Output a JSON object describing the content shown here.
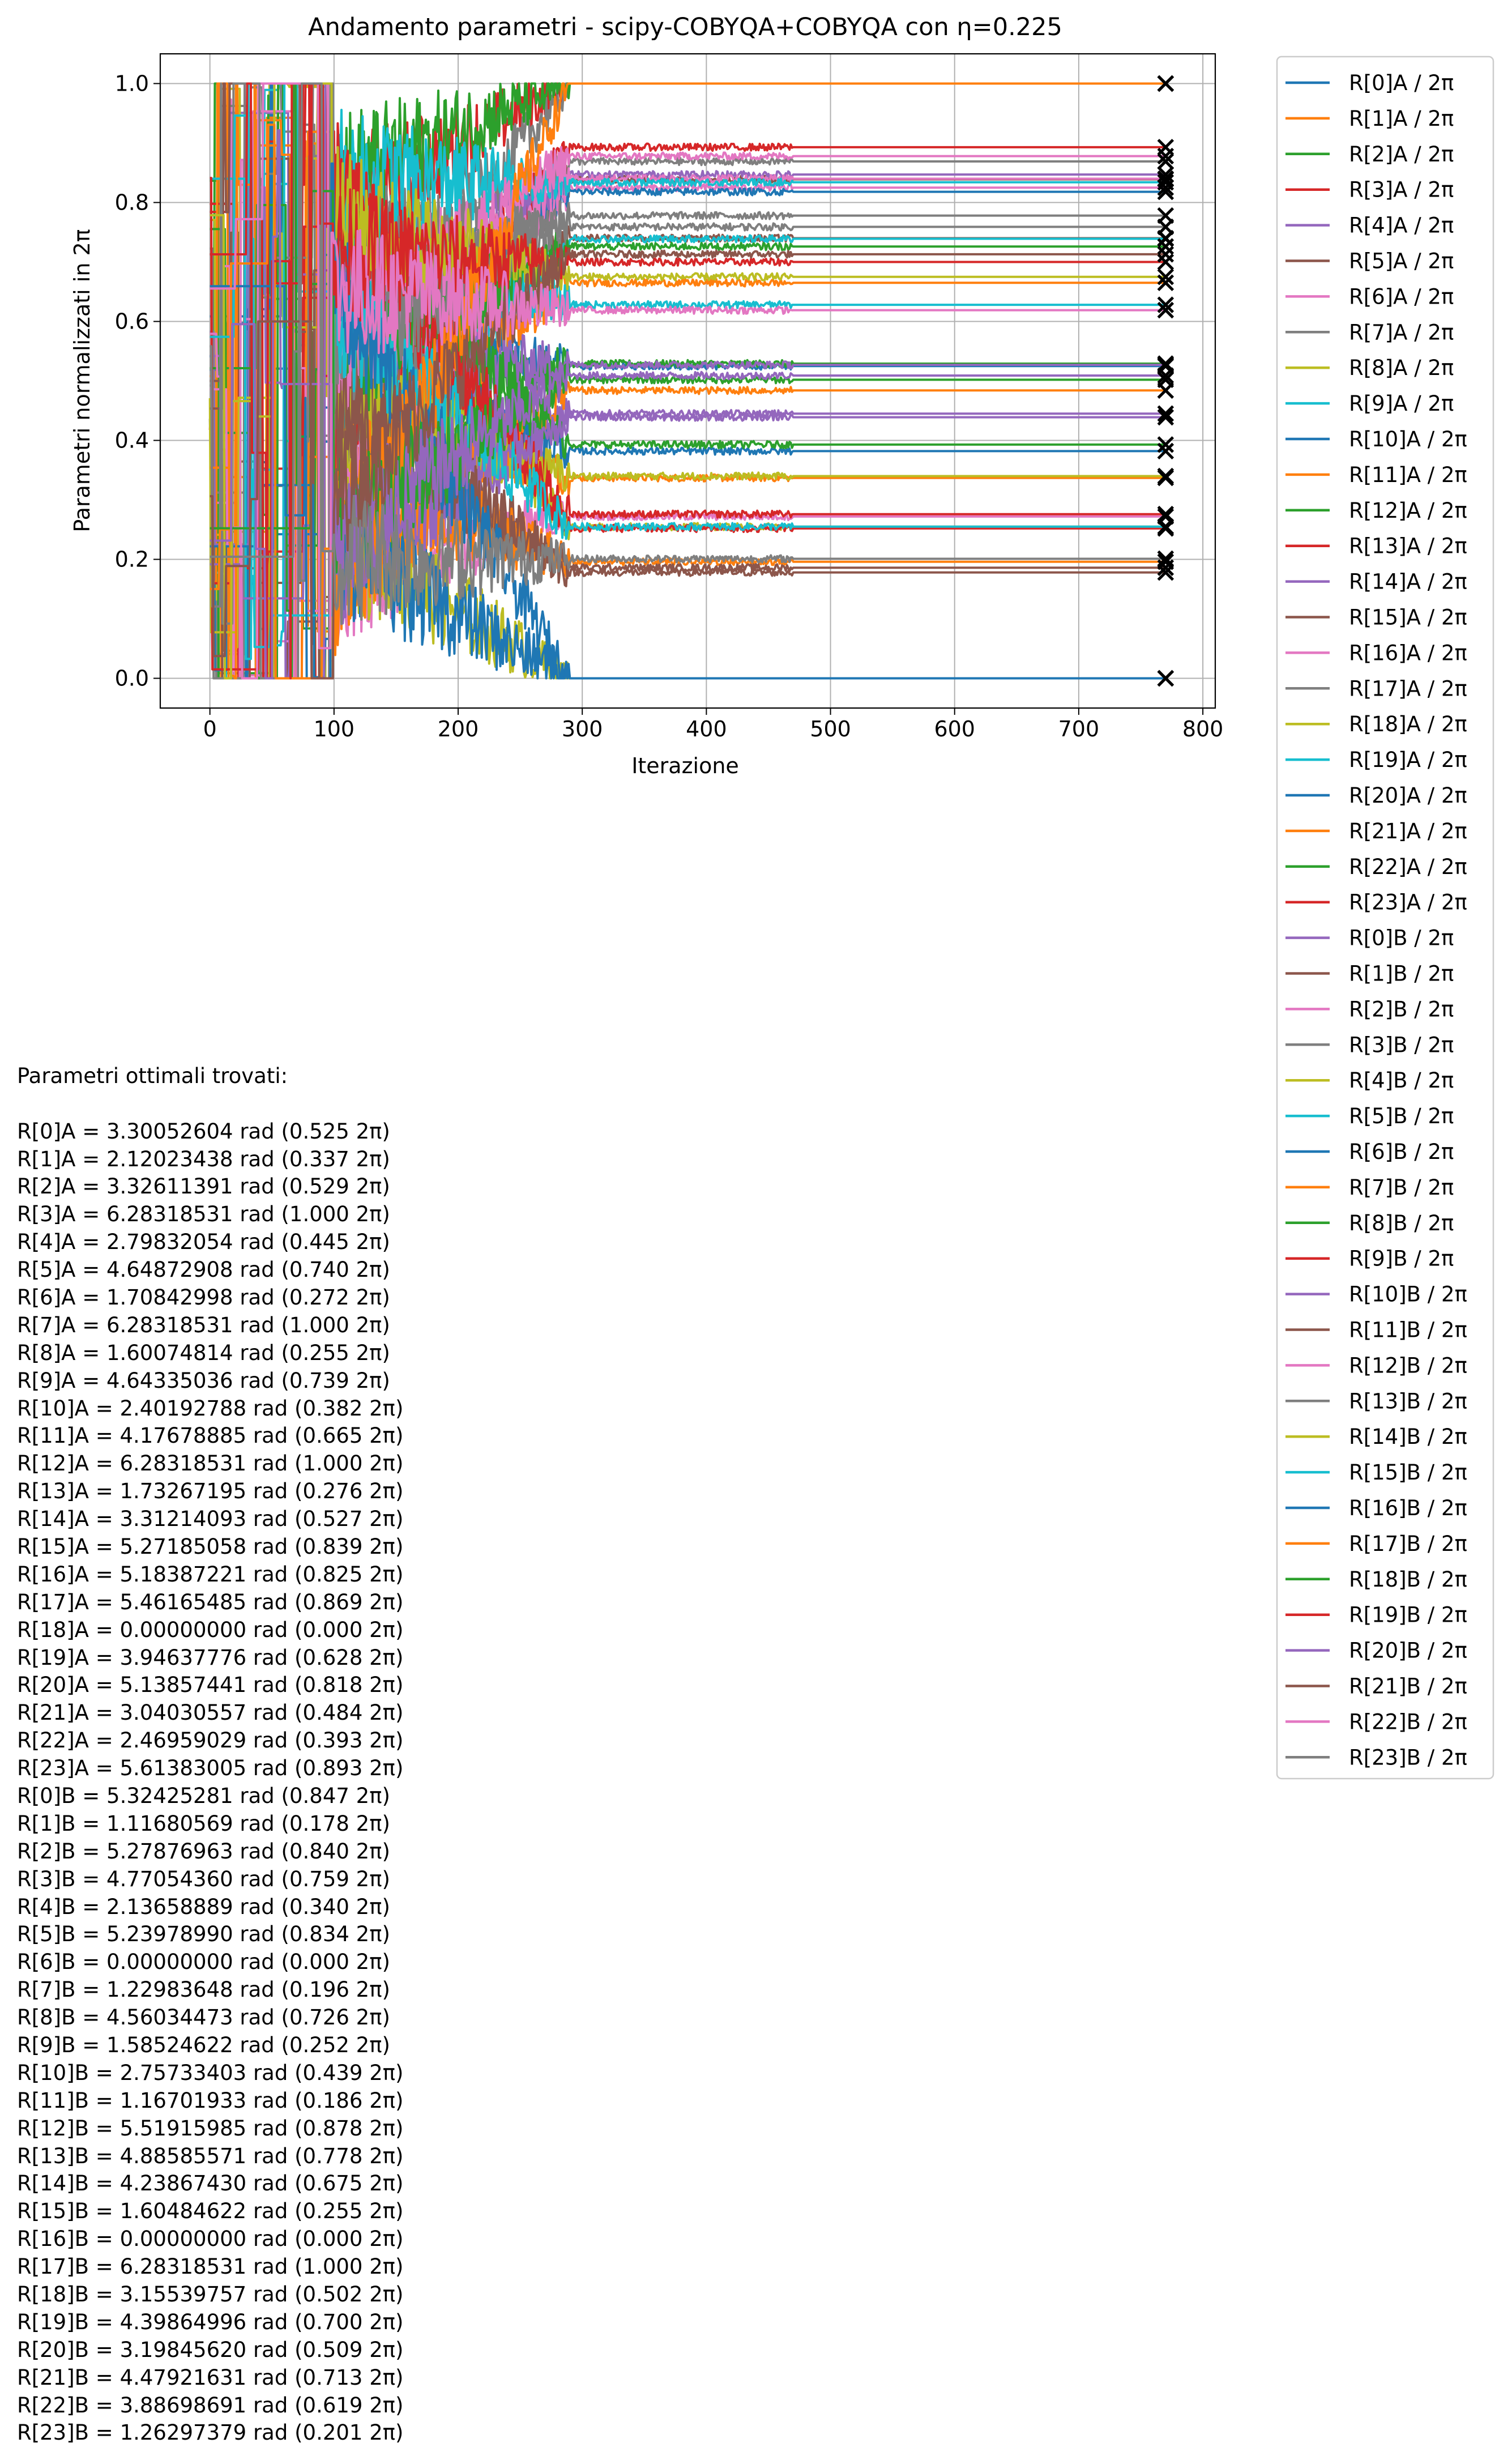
{
  "chart_data": {
    "type": "line",
    "title": "Andamento parametri - scipy-COBYQA+COBYQA con η=0.225",
    "xlabel": "Iterazione",
    "ylabel": "Parametri normalizzati in 2π",
    "xlim": [
      -40,
      810
    ],
    "ylim": [
      -0.05,
      1.05
    ],
    "xticks": [
      0,
      100,
      200,
      300,
      400,
      500,
      600,
      700,
      800
    ],
    "yticks": [
      0.0,
      0.2,
      0.4,
      0.6,
      0.8,
      1.0
    ],
    "xtick_labels": [
      "0",
      "100",
      "200",
      "300",
      "400",
      "500",
      "600",
      "700",
      "800"
    ],
    "ytick_labels": [
      "0.0",
      "0.2",
      "0.4",
      "0.6",
      "0.8",
      "1.0"
    ],
    "grid": true,
    "legend_position": "outside-right",
    "final_iteration": 770,
    "final_marker": "x",
    "colors": [
      "#1f77b4",
      "#ff7f0e",
      "#2ca02c",
      "#d62728",
      "#9467bd",
      "#8c564b",
      "#e377c2",
      "#7f7f7f",
      "#bcbd22",
      "#17becf"
    ],
    "series": [
      {
        "name": "R[0]A / 2π",
        "final": 0.525,
        "settle": 470
      },
      {
        "name": "R[1]A / 2π",
        "final": 0.337,
        "settle": 470
      },
      {
        "name": "R[2]A / 2π",
        "final": 0.529,
        "settle": 470
      },
      {
        "name": "R[3]A / 2π",
        "final": 1.0,
        "settle": 290
      },
      {
        "name": "R[4]A / 2π",
        "final": 0.445,
        "settle": 470
      },
      {
        "name": "R[5]A / 2π",
        "final": 0.74,
        "settle": 470
      },
      {
        "name": "R[6]A / 2π",
        "final": 0.272,
        "settle": 470
      },
      {
        "name": "R[7]A / 2π",
        "final": 1.0,
        "settle": 290
      },
      {
        "name": "R[8]A / 2π",
        "final": 0.255,
        "settle": 470
      },
      {
        "name": "R[9]A / 2π",
        "final": 0.739,
        "settle": 470
      },
      {
        "name": "R[10]A / 2π",
        "final": 0.382,
        "settle": 470
      },
      {
        "name": "R[11]A / 2π",
        "final": 0.665,
        "settle": 470
      },
      {
        "name": "R[12]A / 2π",
        "final": 1.0,
        "settle": 290
      },
      {
        "name": "R[13]A / 2π",
        "final": 0.276,
        "settle": 470
      },
      {
        "name": "R[14]A / 2π",
        "final": 0.527,
        "settle": 470
      },
      {
        "name": "R[15]A / 2π",
        "final": 0.839,
        "settle": 470
      },
      {
        "name": "R[16]A / 2π",
        "final": 0.825,
        "settle": 470
      },
      {
        "name": "R[17]A / 2π",
        "final": 0.869,
        "settle": 470
      },
      {
        "name": "R[18]A / 2π",
        "final": 0.0,
        "settle": 290
      },
      {
        "name": "R[19]A / 2π",
        "final": 0.628,
        "settle": 470
      },
      {
        "name": "R[20]A / 2π",
        "final": 0.818,
        "settle": 470
      },
      {
        "name": "R[21]A / 2π",
        "final": 0.484,
        "settle": 470
      },
      {
        "name": "R[22]A / 2π",
        "final": 0.393,
        "settle": 470
      },
      {
        "name": "R[23]A / 2π",
        "final": 0.893,
        "settle": 470
      },
      {
        "name": "R[0]B / 2π",
        "final": 0.847,
        "settle": 470
      },
      {
        "name": "R[1]B / 2π",
        "final": 0.178,
        "settle": 470
      },
      {
        "name": "R[2]B / 2π",
        "final": 0.84,
        "settle": 470
      },
      {
        "name": "R[3]B / 2π",
        "final": 0.759,
        "settle": 470
      },
      {
        "name": "R[4]B / 2π",
        "final": 0.34,
        "settle": 470
      },
      {
        "name": "R[5]B / 2π",
        "final": 0.834,
        "settle": 470
      },
      {
        "name": "R[6]B / 2π",
        "final": 0.0,
        "settle": 290
      },
      {
        "name": "R[7]B / 2π",
        "final": 0.196,
        "settle": 470
      },
      {
        "name": "R[8]B / 2π",
        "final": 0.726,
        "settle": 470
      },
      {
        "name": "R[9]B / 2π",
        "final": 0.252,
        "settle": 470
      },
      {
        "name": "R[10]B / 2π",
        "final": 0.439,
        "settle": 470
      },
      {
        "name": "R[11]B / 2π",
        "final": 0.186,
        "settle": 470
      },
      {
        "name": "R[12]B / 2π",
        "final": 0.878,
        "settle": 470
      },
      {
        "name": "R[13]B / 2π",
        "final": 0.778,
        "settle": 470
      },
      {
        "name": "R[14]B / 2π",
        "final": 0.675,
        "settle": 470
      },
      {
        "name": "R[15]B / 2π",
        "final": 0.255,
        "settle": 470
      },
      {
        "name": "R[16]B / 2π",
        "final": 0.0,
        "settle": 290
      },
      {
        "name": "R[17]B / 2π",
        "final": 1.0,
        "settle": 290
      },
      {
        "name": "R[18]B / 2π",
        "final": 0.502,
        "settle": 470
      },
      {
        "name": "R[19]B / 2π",
        "final": 0.7,
        "settle": 470
      },
      {
        "name": "R[20]B / 2π",
        "final": 0.509,
        "settle": 470
      },
      {
        "name": "R[21]B / 2π",
        "final": 0.713,
        "settle": 470
      },
      {
        "name": "R[22]B / 2π",
        "final": 0.619,
        "settle": 470
      },
      {
        "name": "R[23]B / 2π",
        "final": 0.201,
        "settle": 470
      }
    ]
  },
  "optimal_params": {
    "header": "Parametri ottimali trovati:",
    "lines": [
      "R[0]A = 3.30052604 rad (0.525 2π)",
      "R[1]A = 2.12023438 rad (0.337 2π)",
      "R[2]A = 3.32611391 rad (0.529 2π)",
      "R[3]A = 6.28318531 rad (1.000 2π)",
      "R[4]A = 2.79832054 rad (0.445 2π)",
      "R[5]A = 4.64872908 rad (0.740 2π)",
      "R[6]A = 1.70842998 rad (0.272 2π)",
      "R[7]A = 6.28318531 rad (1.000 2π)",
      "R[8]A = 1.60074814 rad (0.255 2π)",
      "R[9]A = 4.64335036 rad (0.739 2π)",
      "R[10]A = 2.40192788 rad (0.382 2π)",
      "R[11]A = 4.17678885 rad (0.665 2π)",
      "R[12]A = 6.28318531 rad (1.000 2π)",
      "R[13]A = 1.73267195 rad (0.276 2π)",
      "R[14]A = 3.31214093 rad (0.527 2π)",
      "R[15]A = 5.27185058 rad (0.839 2π)",
      "R[16]A = 5.18387221 rad (0.825 2π)",
      "R[17]A = 5.46165485 rad (0.869 2π)",
      "R[18]A = 0.00000000 rad (0.000 2π)",
      "R[19]A = 3.94637776 rad (0.628 2π)",
      "R[20]A = 5.13857441 rad (0.818 2π)",
      "R[21]A = 3.04030557 rad (0.484 2π)",
      "R[22]A = 2.46959029 rad (0.393 2π)",
      "R[23]A = 5.61383005 rad (0.893 2π)",
      "R[0]B = 5.32425281 rad (0.847 2π)",
      "R[1]B = 1.11680569 rad (0.178 2π)",
      "R[2]B = 5.27876963 rad (0.840 2π)",
      "R[3]B = 4.77054360 rad (0.759 2π)",
      "R[4]B = 2.13658889 rad (0.340 2π)",
      "R[5]B = 5.23978990 rad (0.834 2π)",
      "R[6]B = 0.00000000 rad (0.000 2π)",
      "R[7]B = 1.22983648 rad (0.196 2π)",
      "R[8]B = 4.56034473 rad (0.726 2π)",
      "R[9]B = 1.58524622 rad (0.252 2π)",
      "R[10]B = 2.75733403 rad (0.439 2π)",
      "R[11]B = 1.16701933 rad (0.186 2π)",
      "R[12]B = 5.51915985 rad (0.878 2π)",
      "R[13]B = 4.88585571 rad (0.778 2π)",
      "R[14]B = 4.23867430 rad (0.675 2π)",
      "R[15]B = 1.60484622 rad (0.255 2π)",
      "R[16]B = 0.00000000 rad (0.000 2π)",
      "R[17]B = 6.28318531 rad (1.000 2π)",
      "R[18]B = 3.15539757 rad (0.502 2π)",
      "R[19]B = 4.39864996 rad (0.700 2π)",
      "R[20]B = 3.19845620 rad (0.509 2π)",
      "R[21]B = 4.47921631 rad (0.713 2π)",
      "R[22]B = 3.88698691 rad (0.619 2π)",
      "R[23]B = 1.26297379 rad (0.201 2π)"
    ]
  }
}
